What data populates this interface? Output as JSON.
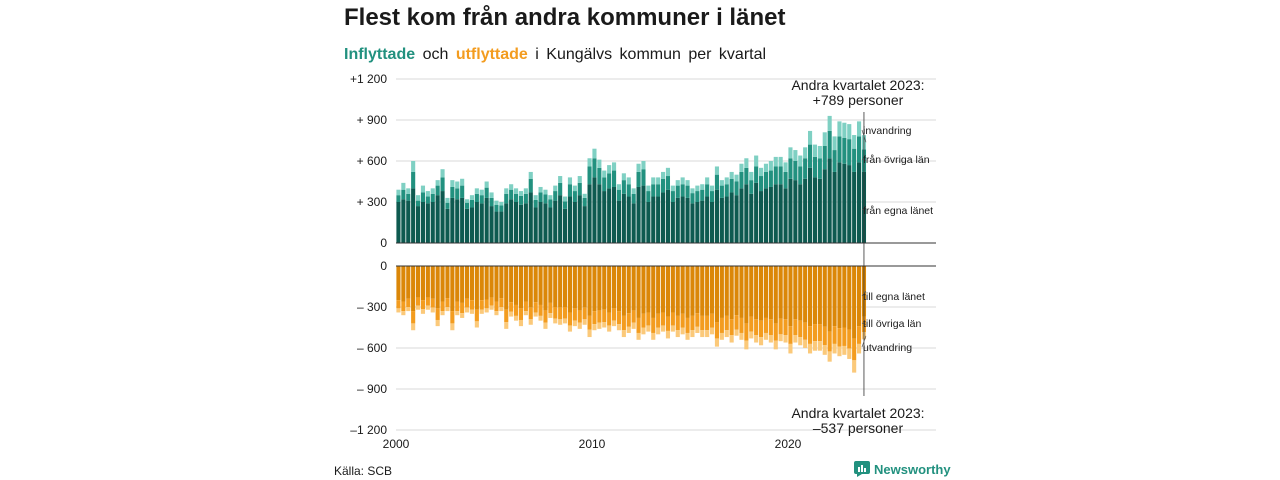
{
  "title": "Flest kom från andra kommuner i länet",
  "subtitle": {
    "in_label": "Inflyttade",
    "and_word": "och",
    "out_label": "utflyttade",
    "rest": "i Kungälvs kommun per kvartal"
  },
  "source": "Källa: SCB",
  "brand": "Newsworthy",
  "colors": {
    "in_own": "#0e5a50",
    "in_other": "#22917f",
    "in_immigration": "#7fd0c3",
    "out_own": "#db8708",
    "out_other": "#f39c1f",
    "out_emigration": "#fbc97a"
  },
  "chart_data": {
    "type": "bar",
    "stacked": true,
    "x_start_quarter": "2000 Q1",
    "x_end_quarter": "2023 Q2",
    "x_ticks": [
      "2000",
      "2010",
      "2020"
    ],
    "y_ticks_top": [
      {
        "label": "+1 200",
        "value": 1200
      },
      {
        "label": "+ 900",
        "value": 900
      },
      {
        "label": "+ 600",
        "value": 600
      },
      {
        "label": "+ 300",
        "value": 300
      },
      {
        "label": "0",
        "value": 0
      }
    ],
    "y_ticks_bottom": [
      {
        "label": "0",
        "value": 0
      },
      {
        "label": "– 300",
        "value": -300
      },
      {
        "label": "– 600",
        "value": -600
      },
      {
        "label": "– 900",
        "value": -900
      },
      {
        "label": "–1 200",
        "value": -1200
      }
    ],
    "series_labels_in": [
      "från egna länet",
      "från övriga län",
      "invandring"
    ],
    "series_labels_out": [
      "till egna länet",
      "till övriga län",
      "utvandring"
    ],
    "annotation_top": {
      "line1": "Andra kvartalet 2023:",
      "line2": "+789 personer"
    },
    "annotation_bottom": {
      "line1": "Andra kvartalet 2023:",
      "line2": "–537 personer"
    },
    "inflow_totals": [
      390,
      440,
      400,
      600,
      350,
      420,
      380,
      400,
      460,
      540,
      330,
      460,
      450,
      470,
      320,
      350,
      400,
      390,
      450,
      370,
      310,
      300,
      400,
      430,
      400,
      380,
      400,
      520,
      350,
      410,
      390,
      350,
      420,
      490,
      340,
      480,
      420,
      490,
      360,
      620,
      690,
      610,
      530,
      570,
      590,
      430,
      510,
      480,
      400,
      580,
      600,
      420,
      480,
      480,
      520,
      550,
      420,
      460,
      480,
      460,
      400,
      420,
      430,
      480,
      420,
      560,
      460,
      480,
      520,
      500,
      580,
      620,
      520,
      640,
      550,
      580,
      600,
      630,
      630,
      590,
      700,
      680,
      640,
      700,
      820,
      720,
      710,
      810,
      930,
      780,
      890,
      880,
      870,
      790,
      890,
      789
    ],
    "inflow_own": [
      300,
      320,
      310,
      400,
      270,
      300,
      290,
      300,
      350,
      380,
      250,
      330,
      320,
      330,
      250,
      260,
      300,
      290,
      330,
      270,
      230,
      230,
      290,
      320,
      300,
      280,
      290,
      370,
      260,
      300,
      290,
      260,
      310,
      350,
      250,
      340,
      300,
      350,
      270,
      430,
      480,
      430,
      380,
      400,
      410,
      310,
      360,
      340,
      290,
      410,
      420,
      300,
      340,
      340,
      370,
      390,
      300,
      330,
      340,
      330,
      290,
      300,
      310,
      340,
      300,
      390,
      330,
      340,
      370,
      350,
      400,
      430,
      360,
      440,
      380,
      400,
      410,
      430,
      430,
      400,
      470,
      460,
      430,
      470,
      550,
      480,
      470,
      540,
      620,
      520,
      590,
      580,
      570,
      520,
      590,
      520
    ],
    "inflow_other": [
      50,
      70,
      50,
      120,
      40,
      70,
      50,
      60,
      70,
      100,
      45,
      80,
      80,
      90,
      45,
      55,
      60,
      60,
      75,
      60,
      50,
      45,
      70,
      70,
      60,
      65,
      70,
      100,
      55,
      70,
      65,
      60,
      70,
      90,
      55,
      90,
      80,
      90,
      60,
      130,
      140,
      120,
      100,
      110,
      120,
      80,
      100,
      90,
      70,
      110,
      120,
      80,
      90,
      90,
      100,
      100,
      80,
      90,
      90,
      90,
      75,
      80,
      80,
      90,
      80,
      110,
      90,
      90,
      100,
      100,
      120,
      120,
      100,
      120,
      110,
      120,
      120,
      130,
      130,
      120,
      150,
      140,
      130,
      150,
      170,
      150,
      150,
      170,
      200,
      160,
      190,
      190,
      190,
      170,
      190,
      165
    ],
    "outflow_totals": [
      -340,
      -360,
      -330,
      -470,
      -320,
      -350,
      -320,
      -340,
      -440,
      -360,
      -330,
      -470,
      -360,
      -380,
      -340,
      -350,
      -450,
      -350,
      -340,
      -320,
      -360,
      -330,
      -460,
      -370,
      -400,
      -440,
      -360,
      -430,
      -370,
      -400,
      -460,
      -380,
      -420,
      -430,
      -420,
      -480,
      -440,
      -460,
      -430,
      -520,
      -470,
      -460,
      -450,
      -480,
      -440,
      -470,
      -520,
      -490,
      -460,
      -540,
      -500,
      -480,
      -540,
      -500,
      -480,
      -530,
      -480,
      -520,
      -500,
      -540,
      -520,
      -490,
      -520,
      -520,
      -500,
      -590,
      -540,
      -520,
      -560,
      -510,
      -540,
      -610,
      -530,
      -560,
      -580,
      -540,
      -560,
      -610,
      -550,
      -560,
      -640,
      -560,
      -580,
      -600,
      -640,
      -620,
      -620,
      -650,
      -700,
      -640,
      -660,
      -650,
      -680,
      -780,
      -640,
      -537
    ],
    "outflow_own": [
      -250,
      -260,
      -240,
      -330,
      -230,
      -250,
      -230,
      -240,
      -310,
      -260,
      -235,
      -330,
      -260,
      -270,
      -240,
      -250,
      -320,
      -250,
      -245,
      -230,
      -260,
      -235,
      -320,
      -265,
      -285,
      -310,
      -260,
      -305,
      -265,
      -285,
      -325,
      -270,
      -300,
      -305,
      -300,
      -340,
      -310,
      -325,
      -305,
      -365,
      -330,
      -325,
      -320,
      -340,
      -310,
      -330,
      -365,
      -345,
      -325,
      -380,
      -350,
      -340,
      -380,
      -350,
      -340,
      -370,
      -340,
      -365,
      -350,
      -380,
      -365,
      -345,
      -365,
      -365,
      -350,
      -410,
      -380,
      -365,
      -390,
      -360,
      -380,
      -420,
      -370,
      -390,
      -400,
      -380,
      -390,
      -420,
      -385,
      -390,
      -440,
      -390,
      -400,
      -415,
      -440,
      -425,
      -425,
      -445,
      -480,
      -440,
      -455,
      -450,
      -465,
      -530,
      -440,
      -370
    ],
    "outflow_other": [
      -60,
      -70,
      -60,
      -90,
      -60,
      -65,
      -60,
      -65,
      -85,
      -70,
      -65,
      -90,
      -70,
      -75,
      -65,
      -70,
      -85,
      -70,
      -65,
      -60,
      -70,
      -65,
      -90,
      -70,
      -80,
      -85,
      -70,
      -85,
      -75,
      -80,
      -90,
      -75,
      -85,
      -85,
      -85,
      -95,
      -90,
      -90,
      -85,
      -100,
      -95,
      -90,
      -90,
      -95,
      -90,
      -95,
      -105,
      -100,
      -90,
      -110,
      -100,
      -95,
      -110,
      -100,
      -95,
      -105,
      -95,
      -105,
      -100,
      -110,
      -105,
      -100,
      -105,
      -105,
      -100,
      -120,
      -110,
      -105,
      -115,
      -105,
      -110,
      -125,
      -110,
      -115,
      -120,
      -110,
      -115,
      -125,
      -115,
      -115,
      -130,
      -115,
      -120,
      -125,
      -130,
      -125,
      -125,
      -135,
      -145,
      -130,
      -135,
      -135,
      -140,
      -160,
      -130,
      -115
    ]
  }
}
